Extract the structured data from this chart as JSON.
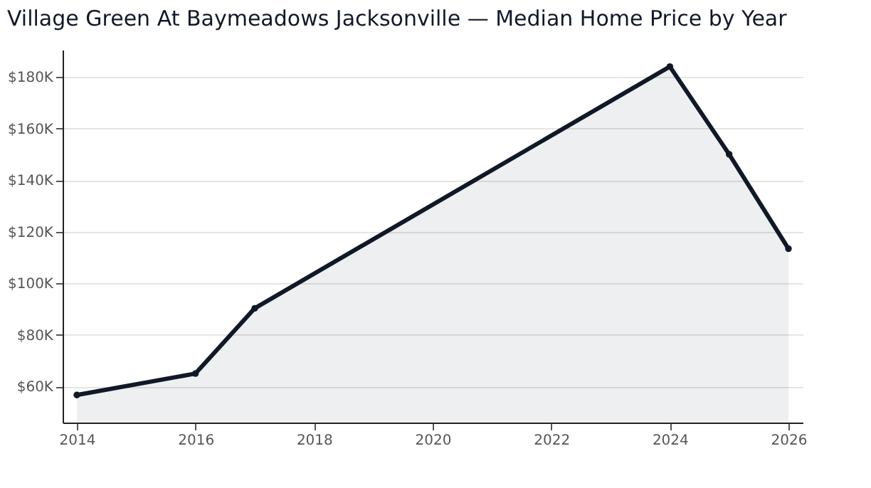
{
  "chart_data": {
    "type": "area",
    "title": "Village Green At Baymeadows Jacksonville — Median Home Price by Year",
    "x": [
      2014,
      2016,
      2017,
      2024,
      2025,
      2026
    ],
    "series": [
      {
        "color": "#111827",
        "values": [
          56.7,
          65,
          90.3,
          184,
          150,
          113.4
        ]
      }
    ],
    "xlim": [
      2013.76,
      2026.24
    ],
    "xticks": [
      2014,
      2016,
      2018,
      2020,
      2022,
      2024,
      2026
    ],
    "ylim": [
      46,
      190.5
    ],
    "yticks": [
      {
        "value": 60,
        "label": "$60K"
      },
      {
        "value": 80,
        "label": "$80K"
      },
      {
        "value": 100,
        "label": "$100K"
      },
      {
        "value": 120,
        "label": "$120K"
      },
      {
        "value": 140,
        "label": "$140K"
      },
      {
        "value": 160,
        "label": "$160K"
      },
      {
        "value": 180,
        "label": "$180K"
      }
    ],
    "grid": "y",
    "marker": "circle",
    "line_style": "solid"
  }
}
